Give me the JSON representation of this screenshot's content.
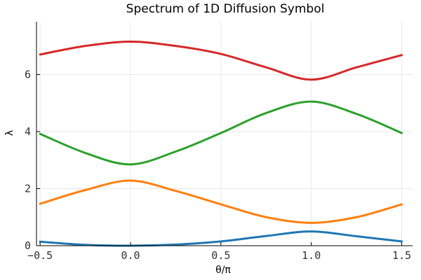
{
  "chart_data": {
    "type": "line",
    "title": "Spectrum of 1D Diffusion Symbol",
    "xlabel": "θ/π",
    "ylabel": "λ",
    "xlim": [
      -0.52,
      1.56
    ],
    "ylim": [
      0,
      7.85
    ],
    "xticks": [
      -0.5,
      0.0,
      0.5,
      1.0,
      1.5
    ],
    "xtick_labels": [
      "−0.5",
      "0.0",
      "0.5",
      "1.0",
      "1.5"
    ],
    "yticks": [
      0,
      2,
      4,
      6
    ],
    "ytick_labels": [
      "0",
      "2",
      "4",
      "6"
    ],
    "grid": true,
    "legend": "none",
    "x": [
      -0.5,
      -0.25,
      0.0,
      0.25,
      0.5,
      0.75,
      1.0,
      1.25,
      1.5
    ],
    "series": [
      {
        "color": "#1f77b4",
        "values": [
          0.14,
          0.03,
          0.0,
          0.04,
          0.15,
          0.34,
          0.5,
          0.33,
          0.15
        ]
      },
      {
        "color": "#ff7f0e",
        "values": [
          1.47,
          1.95,
          2.28,
          1.92,
          1.45,
          1.0,
          0.8,
          1.0,
          1.45
        ]
      },
      {
        "color": "#2ca02c",
        "values": [
          3.92,
          3.25,
          2.85,
          3.3,
          3.95,
          4.65,
          5.05,
          4.62,
          3.95
        ]
      },
      {
        "color": "#d62728",
        "values": [
          6.7,
          7.0,
          7.15,
          7.0,
          6.72,
          6.25,
          5.82,
          6.25,
          6.68
        ]
      }
    ]
  }
}
